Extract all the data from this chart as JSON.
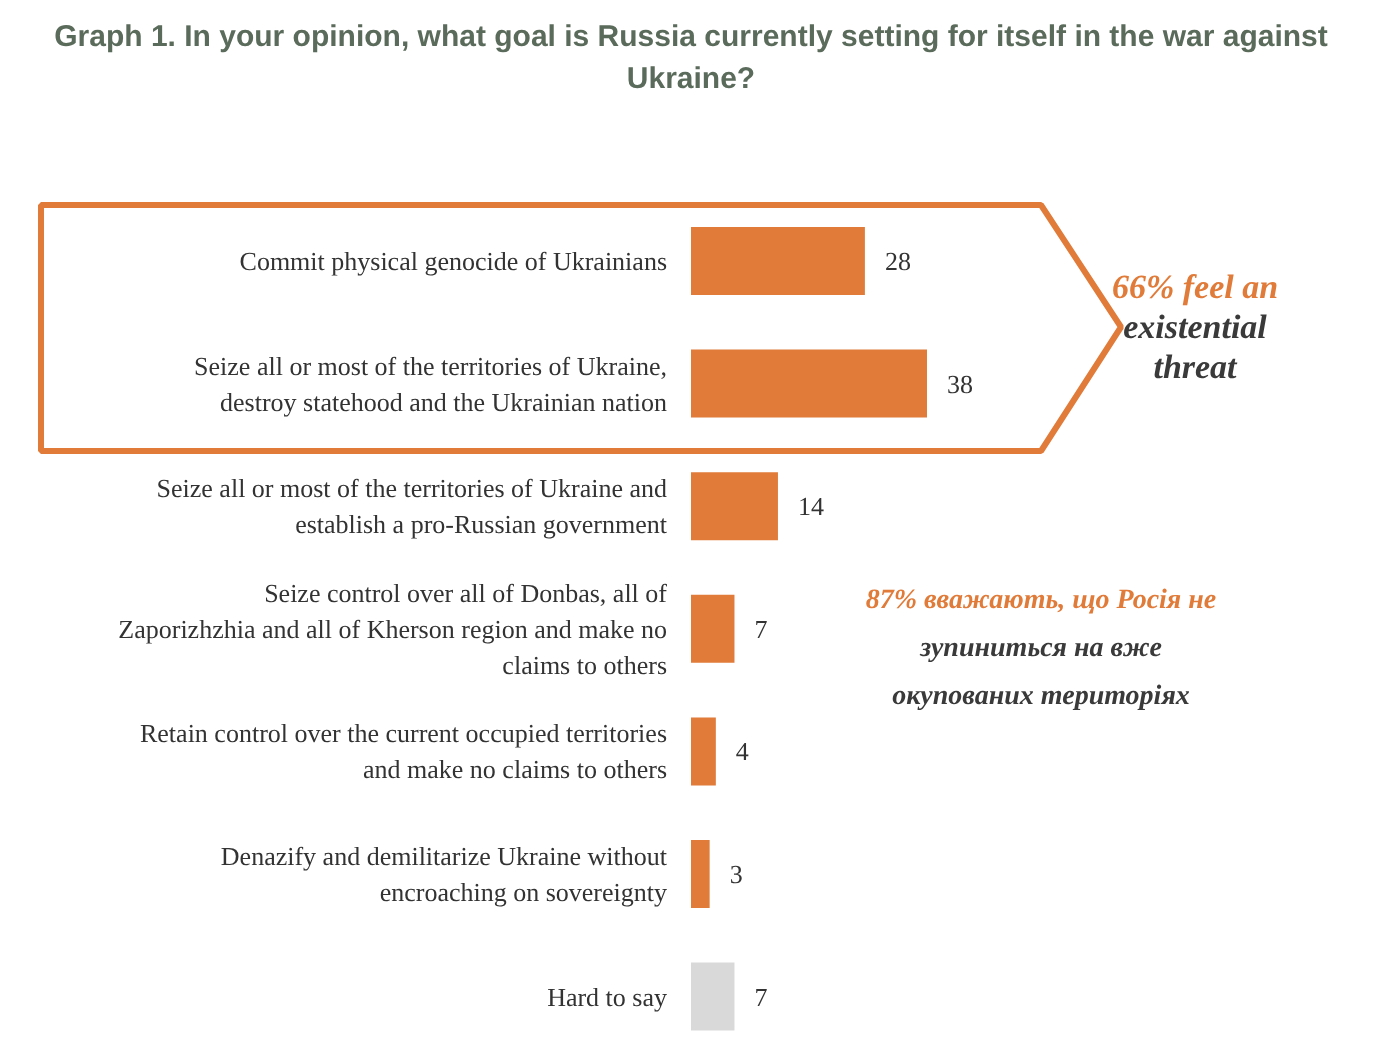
{
  "chart_data": {
    "type": "bar",
    "orientation": "horizontal",
    "title": "Graph 1. In your opinion, what goal is Russia currently setting for itself in the war against Ukraine?",
    "categories": [
      "Commit physical genocide of Ukrainians",
      "Seize all or most of the territories of Ukraine, destroy statehood and the Ukrainian nation",
      "Seize all or most of the territories of Ukraine and establish a pro-Russian government",
      "Seize control over all of Donbas, all of Zaporizhzhia and all of Kherson region and make no claims to others",
      "Retain control over the current occupied territories and make no claims to others",
      "Denazify and demilitarize Ukraine without encroaching on sovereignty",
      "Hard to say"
    ],
    "values": [
      28,
      38,
      14,
      7,
      4,
      3,
      7
    ],
    "colors": [
      "#e07b39",
      "#e07b39",
      "#e07b39",
      "#e07b39",
      "#e07b39",
      "#e07b39",
      "#d9d9d9"
    ],
    "data_labels": true,
    "annotations": [
      "66% feel an existential threat",
      "87% вважають, що Росія не зупиниться на вже окупованих територіях"
    ],
    "grid": false
  }
}
